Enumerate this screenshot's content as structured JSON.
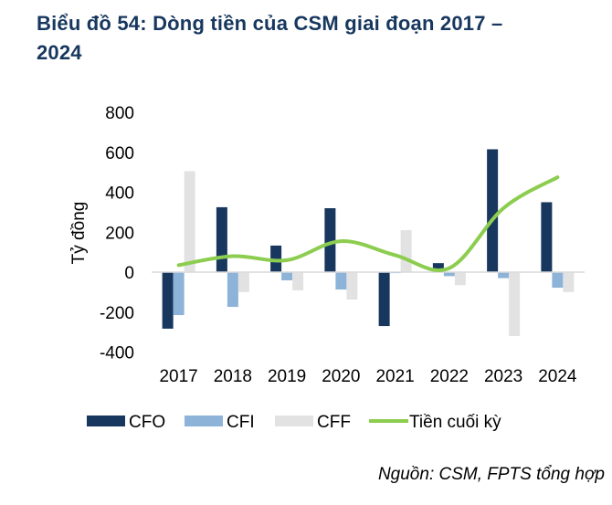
{
  "title_line1": "Biểu đồ 54: Dòng tiền của CSM giai đoạn 2017 –",
  "title_line2": "2024",
  "source": "Nguồn: CSM, FPTS tổng hợp",
  "colors": {
    "CFO": "#17375e",
    "CFI": "#8db3d9",
    "CFF": "#e2e2e2",
    "line": "#8ccd4f",
    "axis": "#d9d9d9",
    "title": "#17375e"
  },
  "chart_data": {
    "type": "bar",
    "title": "Biểu đồ 54: Dòng tiền của CSM giai đoạn 2017 – 2024",
    "xlabel": "",
    "ylabel": "Tỷ đồng",
    "ylim": [
      -400,
      800
    ],
    "yticks": [
      800,
      600,
      400,
      200,
      0,
      -200,
      -400
    ],
    "ytick_labels": [
      "800",
      "600",
      "400",
      "200",
      "0",
      "-200",
      "-400"
    ],
    "grid": false,
    "legend_position": "bottom",
    "categories": [
      "2017",
      "2018",
      "2019",
      "2020",
      "2021",
      "2022",
      "2023",
      "2024"
    ],
    "series": [
      {
        "name": "CFO",
        "type": "bar",
        "values": [
          -283,
          325,
          133,
          320,
          -270,
          45,
          615,
          350
        ]
      },
      {
        "name": "CFI",
        "type": "bar",
        "values": [
          -215,
          -174,
          -41,
          -87,
          -5,
          -20,
          -30,
          -78
        ]
      },
      {
        "name": "CFF",
        "type": "bar",
        "values": [
          505,
          -100,
          -91,
          -137,
          210,
          -65,
          -320,
          -100
        ]
      },
      {
        "name": "Tiền cuối kỳ",
        "type": "line",
        "values": [
          35,
          80,
          60,
          155,
          85,
          20,
          320,
          475
        ]
      }
    ]
  }
}
